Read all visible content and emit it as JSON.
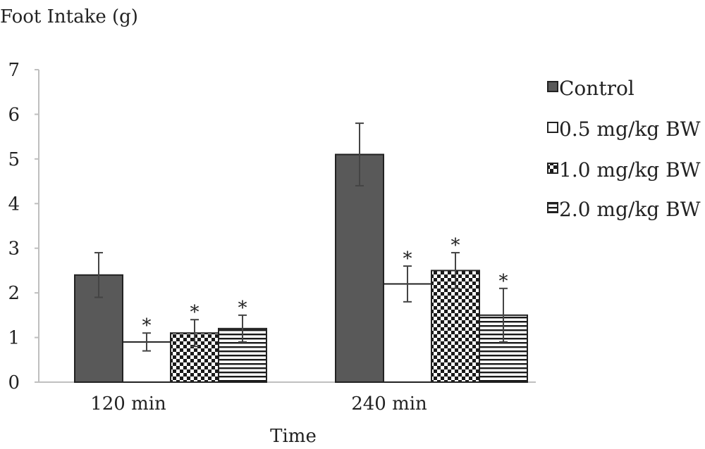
{
  "chart_data": {
    "type": "bar",
    "title": "",
    "ylabel": "Foot Intake (g)",
    "xlabel": "Time",
    "ylim": [
      0,
      7
    ],
    "yticks": [
      0,
      1,
      2,
      3,
      4,
      5,
      6,
      7
    ],
    "categories": [
      "120 min",
      "240 min"
    ],
    "series": [
      {
        "name": "Control",
        "pattern": "solid-dark",
        "values": [
          2.4,
          5.1
        ],
        "errors": [
          0.5,
          0.7
        ],
        "significant": [
          false,
          false
        ]
      },
      {
        "name": "0.5 mg/kg BW",
        "pattern": "white",
        "values": [
          0.9,
          2.2
        ],
        "errors": [
          0.2,
          0.4
        ],
        "significant": [
          true,
          true
        ]
      },
      {
        "name": "1.0 mg/kg BW",
        "pattern": "checkerboard",
        "values": [
          1.1,
          2.5
        ],
        "errors": [
          0.3,
          0.4
        ],
        "significant": [
          true,
          true
        ]
      },
      {
        "name": "2.0 mg/kg BW",
        "pattern": "horizontal-stripes",
        "values": [
          1.2,
          1.5
        ],
        "errors": [
          0.3,
          0.6
        ],
        "significant": [
          true,
          true
        ]
      }
    ],
    "significance_marker": "*",
    "legend_position": "right",
    "grid": false,
    "colors": {
      "control_fill": "#595959",
      "stroke": "#222222",
      "axis": "#bfbfbf"
    }
  }
}
